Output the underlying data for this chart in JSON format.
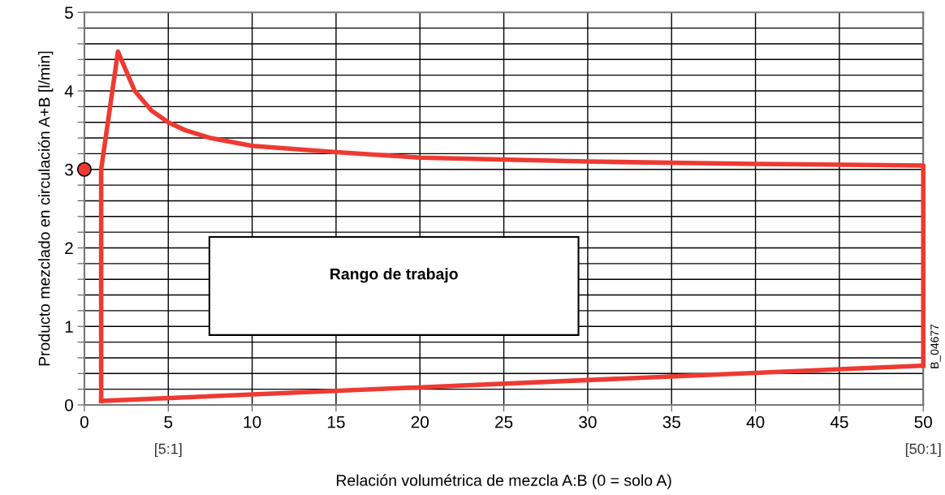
{
  "chart_data": {
    "type": "line",
    "xlabel": "Relación volumétrica de mezcla A:B (0 = solo A)",
    "ylabel": "Producto mezclado en circulación A+B [l/min]",
    "series": [
      {
        "color": "#ee3a32",
        "x": [
          1,
          1,
          2,
          3,
          4,
          5,
          6,
          7.5,
          10,
          15,
          20,
          30,
          40,
          50,
          50
        ],
        "values": [
          0.05,
          3.0,
          4.5,
          4.0,
          3.75,
          3.6,
          3.5,
          3.4,
          3.3,
          3.22,
          3.15,
          3.1,
          3.07,
          3.05,
          0.5
        ]
      },
      {
        "color": "#ee3a32",
        "x": [
          1,
          50
        ],
        "values": [
          0.05,
          0.5
        ]
      },
      {
        "type": "scatter",
        "color": "#ee3a32",
        "marker": "circle",
        "x": [
          0
        ],
        "values": [
          3
        ]
      }
    ],
    "xlim": [
      0,
      50
    ],
    "xticks": [
      0,
      5,
      10,
      15,
      20,
      25,
      30,
      35,
      40,
      45,
      50
    ],
    "ylim": [
      0,
      5
    ],
    "yticks": [
      0,
      {
        "value": 0.2,
        "label": null
      },
      {
        "value": 0.4,
        "label": null
      },
      {
        "value": 0.6,
        "label": null
      },
      {
        "value": 0.8,
        "label": null
      },
      1,
      {
        "value": 1.2,
        "label": null
      },
      {
        "value": 1.4,
        "label": null
      },
      {
        "value": 1.6,
        "label": null
      },
      {
        "value": 1.8,
        "label": null
      },
      2,
      {
        "value": 2.2,
        "label": null
      },
      {
        "value": 2.4,
        "label": null
      },
      {
        "value": 2.6,
        "label": null
      },
      {
        "value": 2.8,
        "label": null
      },
      3,
      {
        "value": 3.2,
        "label": null
      },
      {
        "value": 3.4,
        "label": null
      },
      {
        "value": 3.6,
        "label": null
      },
      {
        "value": 3.8,
        "label": null
      },
      4,
      {
        "value": 4.2,
        "label": null
      },
      {
        "value": 4.4,
        "label": null
      },
      {
        "value": 4.6,
        "label": null
      },
      {
        "value": 4.8,
        "label": null
      },
      5
    ],
    "grid": true,
    "annotations": [
      "Rango de trabajo",
      "B_04677",
      "[5:1]",
      "[50:1]"
    ]
  }
}
